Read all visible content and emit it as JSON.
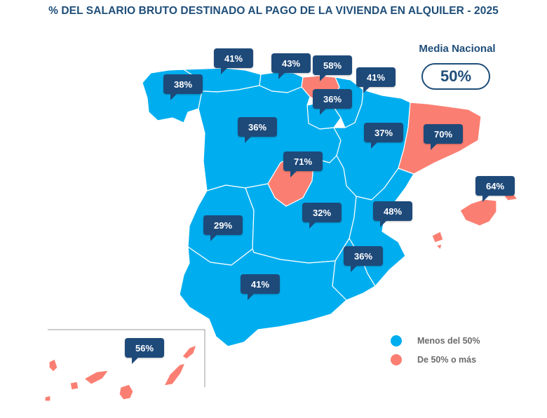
{
  "title": "% DEL SALARIO BRUTO DESTINADO AL PAGO DE LA VIVIENDA EN ALQUILER - 2025",
  "national": {
    "label": "Media Nacional",
    "value": "50%"
  },
  "colors": {
    "below": "#00aeef",
    "above": "#fa7f72",
    "label_bg": "#1e4a7a",
    "title": "#1f4e79"
  },
  "legend": [
    {
      "label": "Menos del 50%",
      "color": "#00aeef"
    },
    {
      "label": "De 50% o más",
      "color": "#fa7f72"
    }
  ],
  "regions": [
    {
      "id": "galicia",
      "label": "38%",
      "value": 38
    },
    {
      "id": "asturias",
      "label": "41%",
      "value": 41
    },
    {
      "id": "cantabria",
      "label": "43%",
      "value": 43
    },
    {
      "id": "pais-vasco",
      "label": "58%",
      "value": 58
    },
    {
      "id": "navarra",
      "label": "41%",
      "value": 41
    },
    {
      "id": "la-rioja",
      "label": "36%",
      "value": 36
    },
    {
      "id": "castilla-y-leon",
      "label": "36%",
      "value": 36
    },
    {
      "id": "aragon",
      "label": "37%",
      "value": 37
    },
    {
      "id": "cataluna",
      "label": "70%",
      "value": 70
    },
    {
      "id": "madrid",
      "label": "71%",
      "value": 71
    },
    {
      "id": "baleares",
      "label": "64%",
      "value": 64
    },
    {
      "id": "extremadura",
      "label": "29%",
      "value": 29
    },
    {
      "id": "castilla-la-mancha",
      "label": "32%",
      "value": 32
    },
    {
      "id": "comunidad-valenciana",
      "label": "48%",
      "value": 48
    },
    {
      "id": "murcia",
      "label": "36%",
      "value": 36
    },
    {
      "id": "andalucia",
      "label": "41%",
      "value": 41
    },
    {
      "id": "canarias",
      "label": "56%",
      "value": 56
    }
  ]
}
